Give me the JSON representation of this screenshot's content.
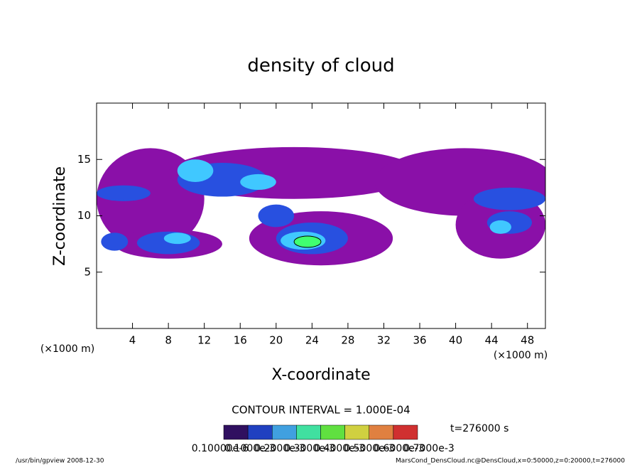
{
  "chart_data": {
    "type": "contour",
    "title": "density of cloud",
    "x_label": "X-coordinate",
    "y_label": "Z-coordinate",
    "x_unit": "(×1000 m)",
    "y_unit": "(×1000 m)",
    "xlim": [
      0,
      50
    ],
    "ylim": [
      0,
      20
    ],
    "xticks": [
      4,
      8,
      12,
      16,
      20,
      24,
      28,
      32,
      36,
      40,
      44,
      48
    ],
    "yticks": [
      5,
      10,
      15
    ],
    "contour_interval": "CONTOUR INTERVAL = 1.000E-04",
    "time": "t=276000 s",
    "levels": [
      {
        "value": 1e-05,
        "color": "#8a10a8"
      },
      {
        "value": 0.0001,
        "color": "#2850e0"
      },
      {
        "value": 0.0002,
        "color": "#40c8ff"
      },
      {
        "value": 0.0004,
        "color": "#40ff70"
      }
    ],
    "blobs": [
      {
        "x": 6,
        "z": 11.5,
        "rx": 6,
        "rz": 4.5,
        "value": 1e-05
      },
      {
        "x": 22,
        "z": 13.8,
        "rx": 14,
        "rz": 2.3,
        "value": 1e-05
      },
      {
        "x": 41,
        "z": 13,
        "rx": 10,
        "rz": 3,
        "value": 1e-05
      },
      {
        "x": 25,
        "z": 8,
        "rx": 8,
        "rz": 2.4,
        "value": 1e-05
      },
      {
        "x": 45,
        "z": 9.2,
        "rx": 5,
        "rz": 3,
        "value": 1e-05
      },
      {
        "x": 8,
        "z": 7.5,
        "rx": 6,
        "rz": 1.3,
        "value": 1e-05
      },
      {
        "x": 14,
        "z": 13.2,
        "rx": 5,
        "rz": 1.5,
        "value": 0.0001
      },
      {
        "x": 8,
        "z": 7.6,
        "rx": 3.5,
        "rz": 1,
        "value": 0.0001
      },
      {
        "x": 24,
        "z": 8,
        "rx": 4,
        "rz": 1.4,
        "value": 0.0001
      },
      {
        "x": 46,
        "z": 11.5,
        "rx": 4,
        "rz": 1,
        "value": 0.0001
      },
      {
        "x": 46,
        "z": 9.4,
        "rx": 2.5,
        "rz": 1,
        "value": 0.0001
      },
      {
        "x": 20,
        "z": 10,
        "rx": 2,
        "rz": 1,
        "value": 0.0001
      },
      {
        "x": 3,
        "z": 12,
        "rx": 3,
        "rz": 0.7,
        "value": 0.0001
      },
      {
        "x": 2,
        "z": 7.7,
        "rx": 1.5,
        "rz": 0.8,
        "value": 0.0001
      },
      {
        "x": 11,
        "z": 14,
        "rx": 2,
        "rz": 1,
        "value": 0.0002
      },
      {
        "x": 18,
        "z": 13,
        "rx": 2,
        "rz": 0.7,
        "value": 0.0002
      },
      {
        "x": 23,
        "z": 7.8,
        "rx": 2.5,
        "rz": 0.8,
        "value": 0.0002
      },
      {
        "x": 45,
        "z": 9,
        "rx": 1.2,
        "rz": 0.6,
        "value": 0.0002
      },
      {
        "x": 9,
        "z": 8,
        "rx": 1.5,
        "rz": 0.5,
        "value": 0.0002
      },
      {
        "x": 23.5,
        "z": 7.7,
        "rx": 1.5,
        "rz": 0.5,
        "value": 0.0004
      }
    ],
    "colorbar": [
      {
        "label": "0.10000e-6",
        "color": "#301060"
      },
      {
        "label": "0.1000e-3",
        "color": "#2040c0"
      },
      {
        "label": "0.2000e-3",
        "color": "#40a0e0"
      },
      {
        "label": "0.3000e-3",
        "color": "#40e0a0"
      },
      {
        "label": "0.4000e-3",
        "color": "#60e040"
      },
      {
        "label": "0.5000e-3",
        "color": "#d0d040"
      },
      {
        "label": "0.6000e-3",
        "color": "#e08040"
      },
      {
        "label": "0.7000e-3",
        "color": "#d03030"
      }
    ],
    "footer_left": "/usr/bin/gpview  2008-12-30",
    "footer_right": "MarsCond_DensCloud.nc@DensCloud,x=0:50000,z=0:20000,t=276000"
  }
}
